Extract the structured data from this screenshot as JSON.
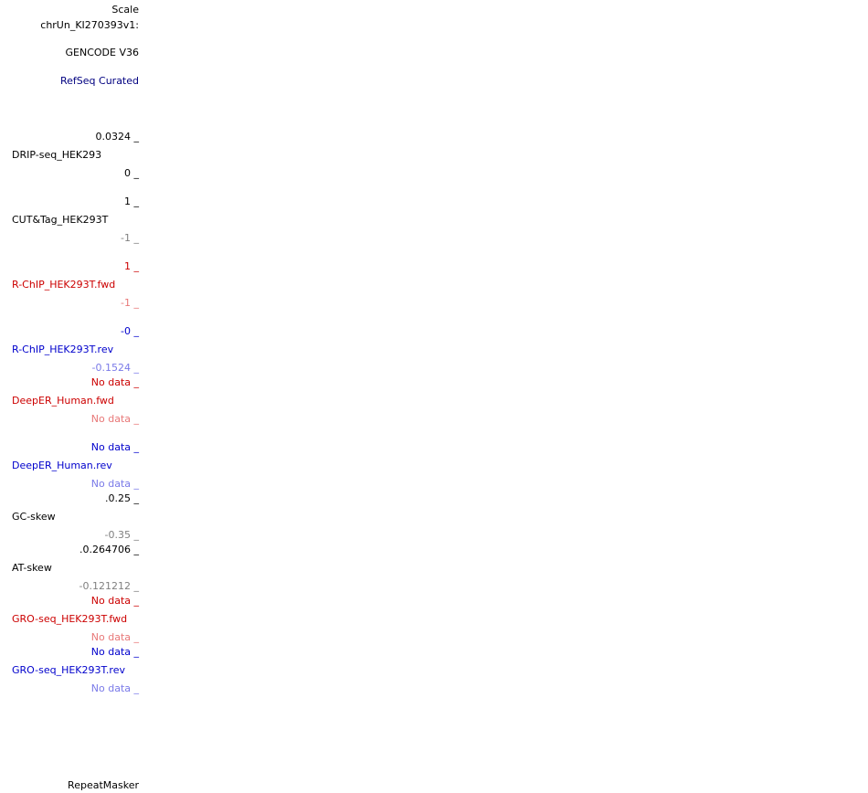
{
  "left_labels": {
    "scale": "Scale",
    "chrom": "chrUn_KI270393v1:",
    "gencode": "GENCODE V36",
    "refseq": "RefSeq Curated",
    "repeatmasker": "RepeatMasker"
  },
  "tracks": [
    {
      "name": "DRIP-seq_HEK293",
      "max": "0.0324 _",
      "min": "0 _"
    },
    {
      "name": "CUT&Tag_HEK293T",
      "max": "1 _",
      "min": "-1 _"
    },
    {
      "name": "R-ChIP_HEK293T.fwd",
      "max": "1 _",
      "min": "-1 _"
    },
    {
      "name": "R-ChIP_HEK293T.rev",
      "max": "-0 _",
      "min": "-0.1524 _"
    },
    {
      "name": "DeepER_Human.fwd",
      "max": "No data _",
      "min": "No data _"
    },
    {
      "name": "DeepER_Human.rev",
      "max": "No data _",
      "min": "No data _"
    },
    {
      "name": "GC-skew",
      "max": ".0.25 _",
      "min": "-0.35 _"
    },
    {
      "name": "AT-skew",
      "max": ".0.264706 _",
      "min": "-0.121212 _"
    },
    {
      "name": "GRO-seq_HEK293T.fwd",
      "max": "No data _",
      "min": "No data _"
    },
    {
      "name": "GRO-seq_HEK293T.rev",
      "max": "No data _",
      "min": "No data _"
    }
  ],
  "colors": {
    "black": "#000000",
    "navy": "#000080",
    "gray": "#808080",
    "red": "#cc0000",
    "pink": "#e87878",
    "blue": "#0000cc",
    "lightblue": "#7a7ae8"
  }
}
